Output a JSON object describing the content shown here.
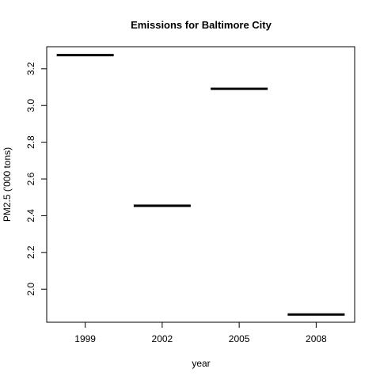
{
  "chart_data": {
    "type": "bar",
    "title": "Emissions for Baltimore City",
    "xlabel": "year",
    "ylabel": "PM2.5 ('000 tons)",
    "categories": [
      "1999",
      "2002",
      "2005",
      "2008"
    ],
    "values": [
      3.274,
      2.454,
      3.091,
      1.862
    ],
    "ylim": [
      1.82,
      3.32
    ],
    "y_ticks": [
      "2.0",
      "2.2",
      "2.4",
      "2.6",
      "2.8",
      "3.0",
      "3.2"
    ],
    "grid": false,
    "legend": "none",
    "mark_color": "#000000"
  }
}
